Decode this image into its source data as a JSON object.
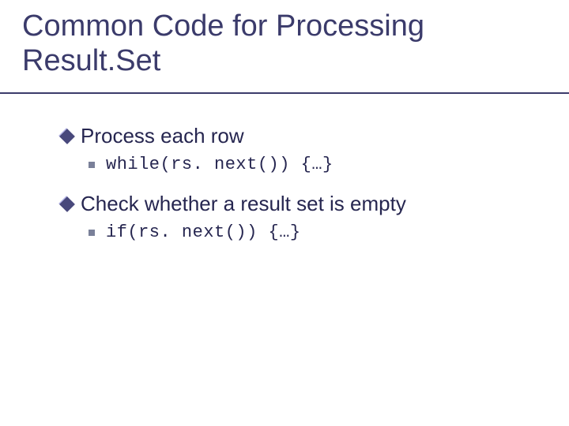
{
  "title_line1": "Common Code for Processing",
  "title_line2": "Result.Set",
  "bullets": [
    {
      "text": "Process each row",
      "sub": "while(rs. next()) {…}"
    },
    {
      "text": "Check whether a result set is empty",
      "sub": "if(rs. next()) {…}"
    }
  ],
  "colors": {
    "title": "#3b3b6b",
    "text": "#262650",
    "diamond_dark": "#49497c",
    "diamond_light": "#b7b7e7",
    "square": "#7a8099",
    "underline": "#3b3b6b",
    "background": "#ffffff"
  },
  "fonts": {
    "title_size_pt": 38,
    "bullet_size_pt": 26,
    "code_size_pt": 22,
    "body_family": "Verdana",
    "code_family": "Courier New"
  }
}
